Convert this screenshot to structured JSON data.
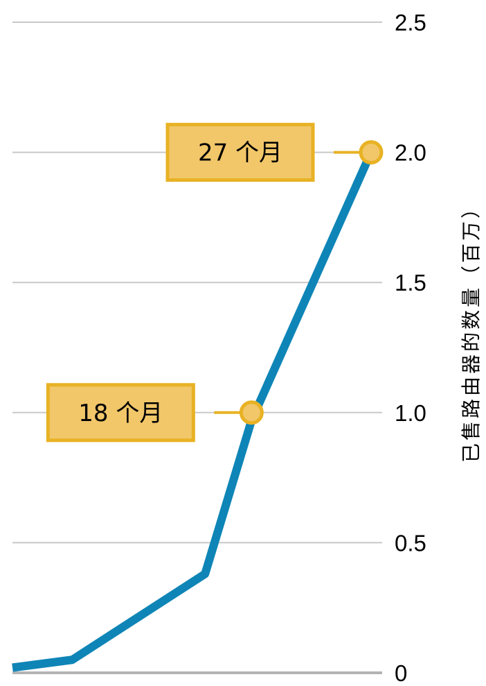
{
  "chart_data": {
    "type": "line",
    "ylabel": "已售路由器的数量（百万）",
    "ylim": [
      0,
      2.5
    ],
    "y_ticks": [
      "0",
      "0.5",
      "1.0",
      "1.5",
      "2.0",
      "2.5"
    ],
    "y_tick_values": [
      0,
      0.5,
      1.0,
      1.5,
      2.0,
      2.5
    ],
    "y_axis_side": "right",
    "grid": true,
    "x_range": [
      0,
      27
    ],
    "series": [
      {
        "x": [
          0,
          4.5,
          14.5,
          18,
          27
        ],
        "values": [
          0.02,
          0.05,
          0.38,
          0.97,
          2.0
        ]
      }
    ],
    "annotations": [
      {
        "text": "18 个月",
        "x": 18,
        "y": 1.0
      },
      {
        "text": "27 个月",
        "x": 27,
        "y": 2.0
      }
    ]
  },
  "colors": {
    "line": "#0e85b6",
    "grid": "#c8c8c8",
    "baseline": "#b4b4b4",
    "annotation_fill": "#f2c76a",
    "annotation_border": "#e8b224",
    "marker_fill": "#f2c76a",
    "marker_stroke": "#e8b224"
  }
}
